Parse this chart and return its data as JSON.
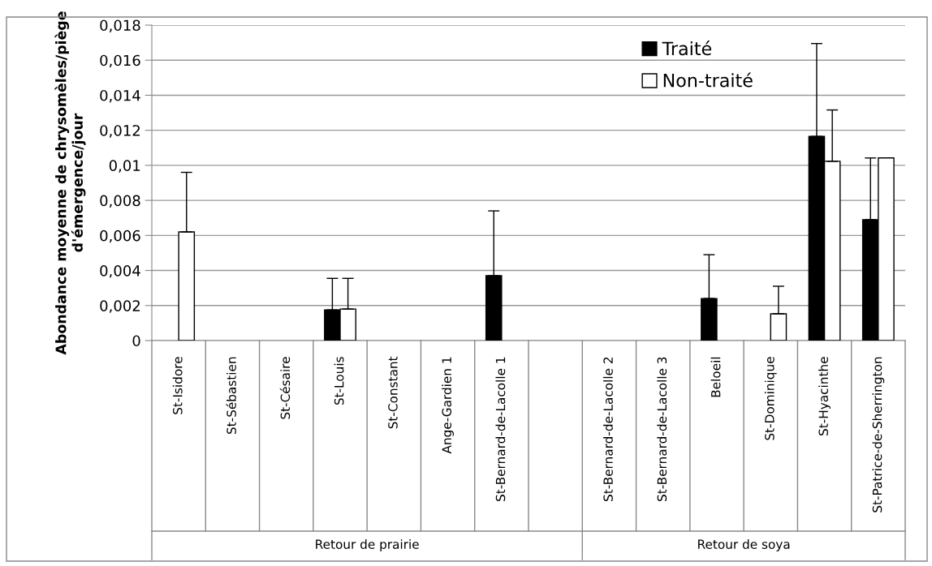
{
  "chart_data": {
    "type": "bar",
    "ylabel": "Abondance moyenne de chrysomèles/piège\nd'émergence/jour",
    "categories": [
      "St-Isidore",
      "St-Sébastien",
      "St-Césaire",
      "St-Louis",
      "St-Constant",
      "Ange-Gardien 1",
      "St-Bernard-de-Lacolle 1",
      null,
      "St-Bernard-de-Lacolle 2",
      "St-Bernard-de-Lacolle 3",
      "Beloeil",
      "St-Dominique",
      "St-Hyacinthe",
      "St-Patrice-de-Sherrington"
    ],
    "series": [
      {
        "name": "Traité",
        "color": "#000000",
        "values": [
          0,
          0,
          0,
          0.00175,
          0,
          0,
          0.0037,
          null,
          0,
          0,
          0.0024,
          0,
          0.01165,
          0.0069
        ],
        "errors": [
          null,
          null,
          null,
          [
            0.00175,
            0.00355
          ],
          null,
          null,
          [
            0.0037,
            0.0074
          ],
          null,
          null,
          null,
          [
            0.0024,
            0.0049
          ],
          null,
          [
            0.01165,
            0.01695
          ],
          [
            0.0069,
            0.01042
          ]
        ]
      },
      {
        "name": "Non-traité",
        "color": "#ffffff",
        "values": [
          0.0062,
          0,
          0,
          0.0018,
          0,
          0,
          0,
          null,
          0,
          0,
          0,
          0.00153,
          0.01023,
          0.01042
        ],
        "errors": [
          [
            0.0062,
            0.0096
          ],
          null,
          null,
          [
            0.0018,
            0.00355
          ],
          null,
          null,
          null,
          null,
          null,
          null,
          null,
          [
            0.00153,
            0.0031
          ],
          [
            0.01023,
            0.01316
          ],
          null
        ]
      }
    ],
    "ylim": [
      0,
      0.018
    ],
    "yticks": [
      0,
      {
        "value": 0.002,
        "label": "0,002"
      },
      {
        "value": 0.004,
        "label": "0,004"
      },
      {
        "value": 0.006,
        "label": "0,006"
      },
      {
        "value": 0.008,
        "label": "0,008"
      },
      {
        "value": 0.01,
        "label": "0,01"
      },
      {
        "value": 0.012,
        "label": "0,012"
      },
      {
        "value": 0.014,
        "label": "0,014"
      },
      {
        "value": 0.016,
        "label": "0,016"
      },
      {
        "value": 0.018,
        "label": "0,018"
      }
    ],
    "grid": "y",
    "legend": "top right",
    "annotations": [
      "Retour de prairie",
      "Retour de soya"
    ]
  }
}
